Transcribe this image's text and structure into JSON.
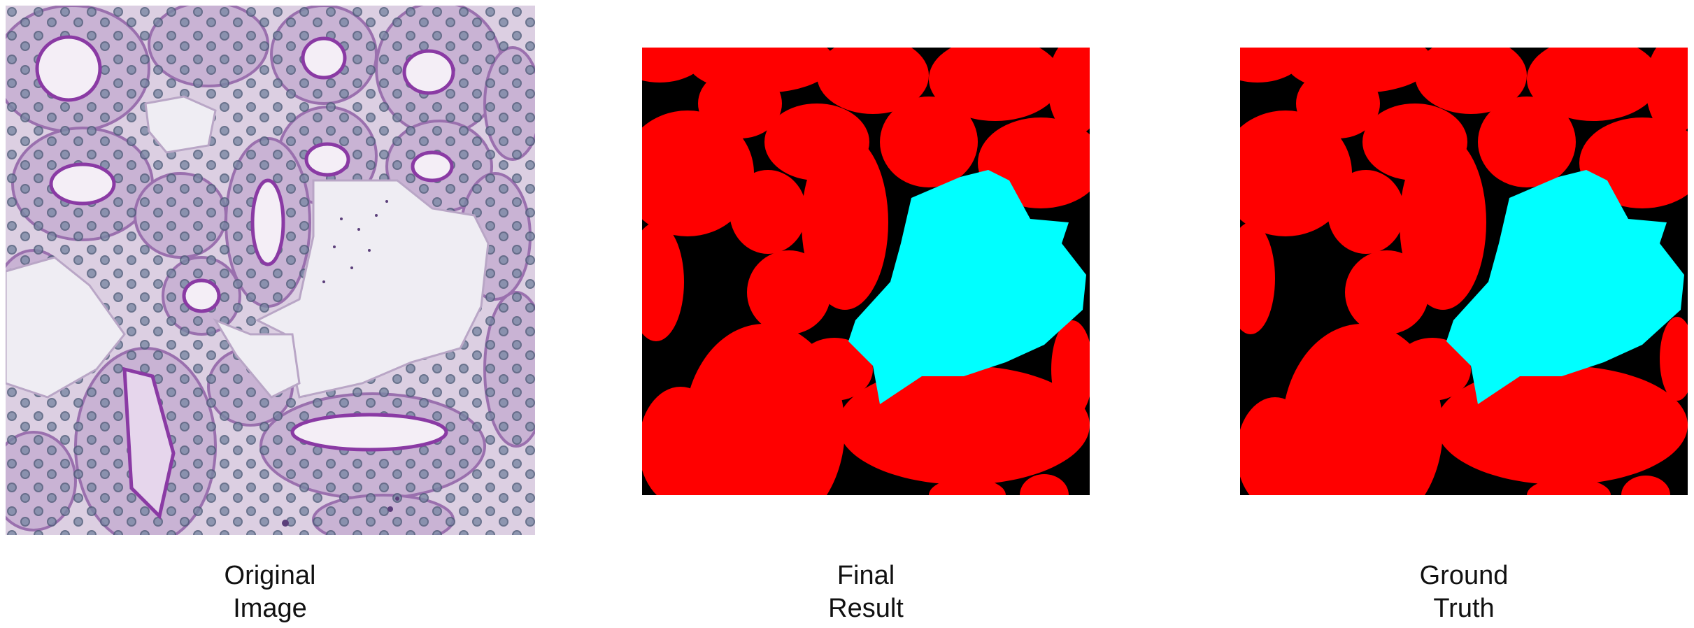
{
  "panels": [
    {
      "caption_line1": "Original",
      "caption_line2": "Image",
      "content": "kidney-histology-micrograph"
    },
    {
      "caption_line1": "Final",
      "caption_line2": "Result",
      "content": "segmentation-mask"
    },
    {
      "caption_line1": "Ground",
      "caption_line2": "Truth",
      "content": "segmentation-mask"
    }
  ],
  "colors": {
    "background_mask": "#000000",
    "tubule_class": "#ff0000",
    "lumen_class": "#00ffff",
    "tissue_background": "#e4d8e8",
    "tubule_wall": "#c8acd2",
    "lumen_edge": "#8a3aa4",
    "nucleus": "#6f7f9c",
    "open_space": "#efedf3"
  }
}
